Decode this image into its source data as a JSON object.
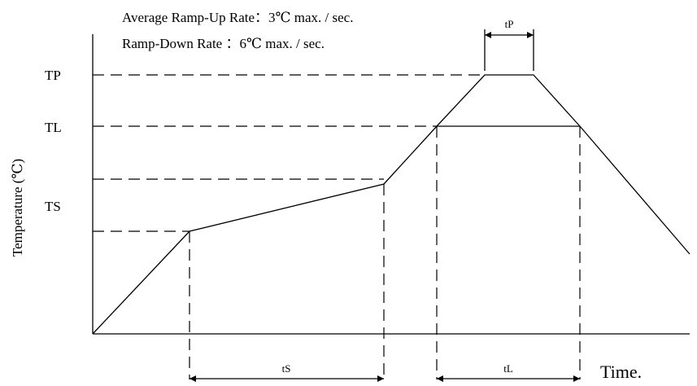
{
  "notes": {
    "ramp_up": "Average Ramp-Up Rate：3℃ max. / sec.",
    "ramp_down": "Ramp-Down Rate ：6℃ max. / sec."
  },
  "axes": {
    "y_label": "Temperature (℃)",
    "x_label": "Time."
  },
  "levels": {
    "tp": "TP",
    "tl": "TL",
    "ts": "TS"
  },
  "intervals": {
    "tp": "tP",
    "ts": "tS",
    "tl": "tL"
  }
}
